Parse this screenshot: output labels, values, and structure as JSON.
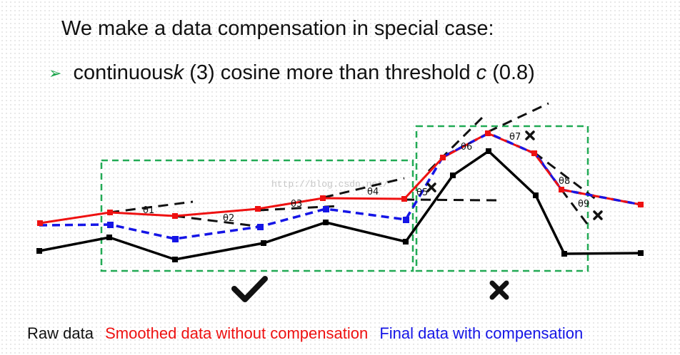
{
  "heading": "We make a data compensation in special case:",
  "bullet": {
    "icon": "green-arrow-bullet-icon",
    "text_pre": "continuous ",
    "k_symbol": "k",
    "k_value": " (3) cosine more than threshold ",
    "c_symbol": "c",
    "c_value": " (0.8)"
  },
  "theta_labels": [
    "θ1",
    "θ2",
    "θ3",
    "θ4",
    "θ5",
    "θ6",
    "θ7",
    "θ8",
    "θ9"
  ],
  "watermark": "http://blog.csdn.net/",
  "verdicts": {
    "left": "check-mark-icon",
    "right": "cross-mark-icon"
  },
  "legend": {
    "raw": "Raw data",
    "smoothed": "Smoothed data without compensation",
    "final": "Final data with compensation"
  },
  "colors": {
    "raw": "#000000",
    "smoothed": "#ee1111",
    "final": "#1515e6",
    "box": "#22aa55",
    "tangent": "#111111",
    "bullet": "#1aa34a"
  }
}
